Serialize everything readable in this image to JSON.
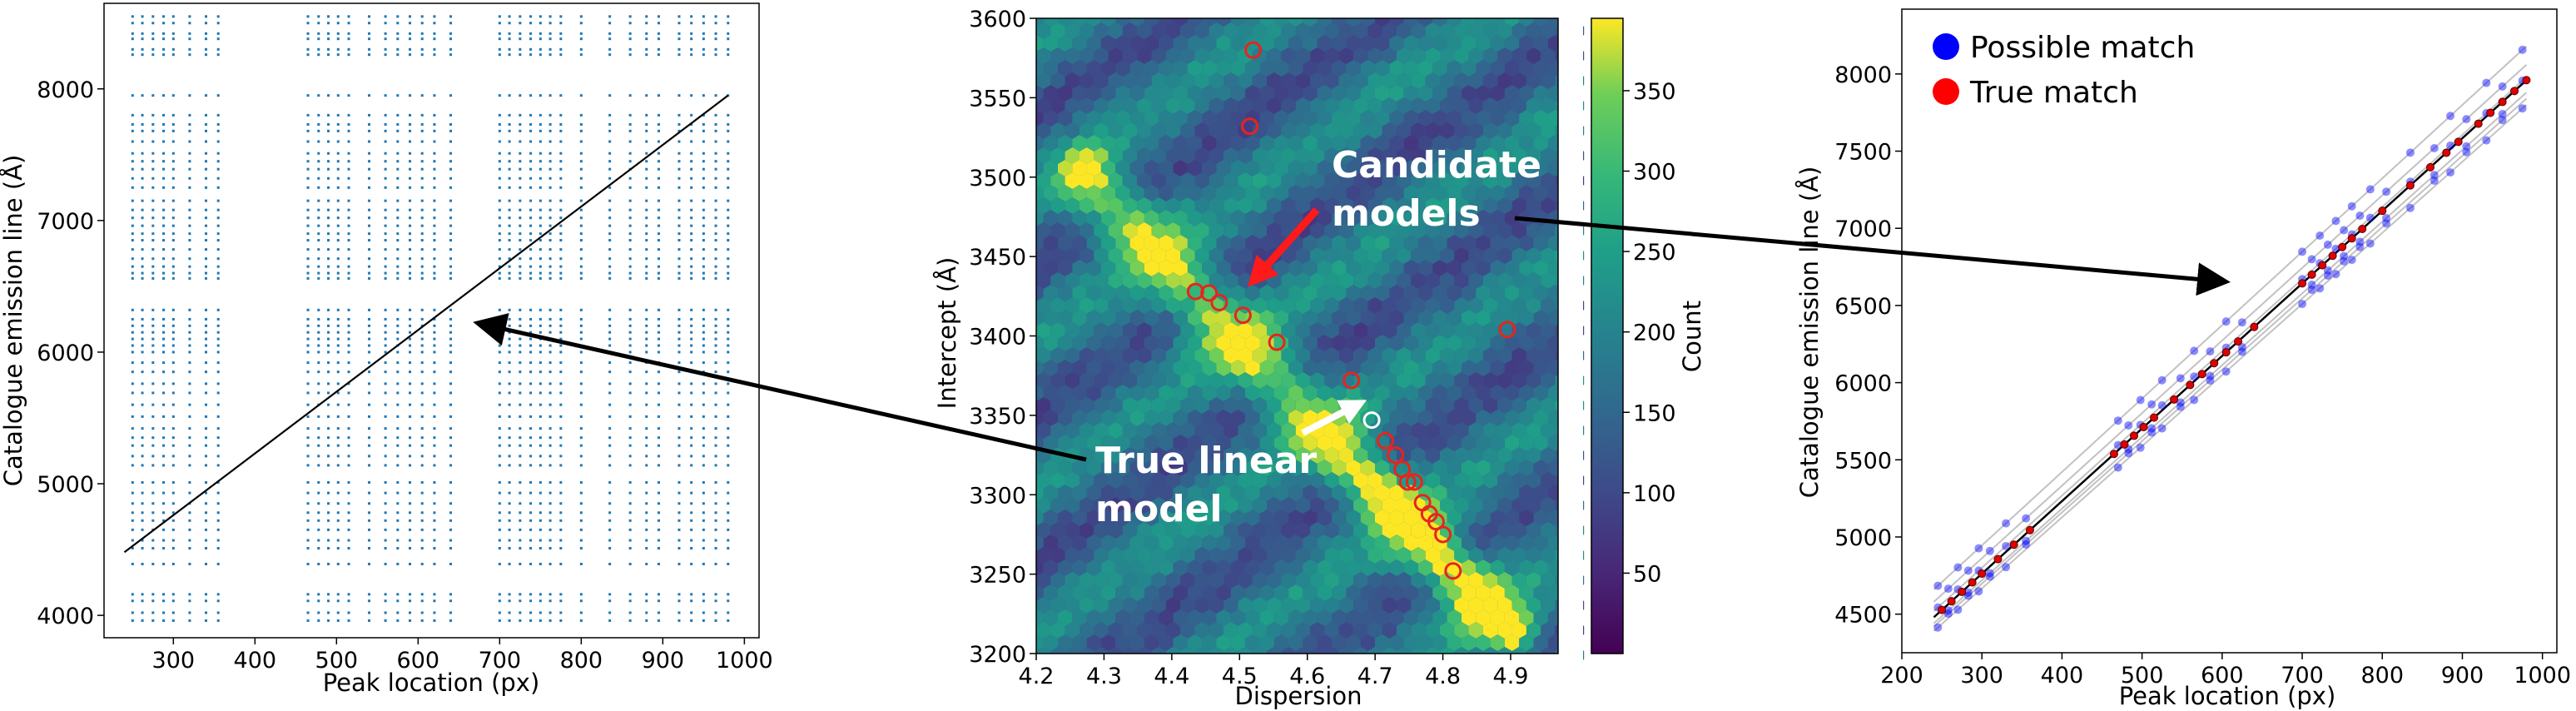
{
  "chart_data": [
    {
      "type": "scatter",
      "title": "",
      "xlabel": "Peak location (px)",
      "ylabel": "Catalogue emission line (Å)",
      "xlim": [
        215,
        1018
      ],
      "ylim": [
        3830,
        8650
      ],
      "xticks": [
        300,
        400,
        500,
        600,
        700,
        800,
        900,
        1000
      ],
      "yticks": [
        4000,
        5000,
        6000,
        7000,
        8000
      ],
      "peak_locations": [
        250,
        262,
        275,
        288,
        300,
        320,
        340,
        355,
        465,
        478,
        490,
        502,
        515,
        540,
        560,
        575,
        590,
        605,
        620,
        640,
        700,
        712,
        725,
        738,
        750,
        762,
        775,
        800,
        835,
        860,
        880,
        895,
        920,
        935,
        950,
        965,
        980
      ],
      "catalogue_lines": [
        3960,
        4020,
        4110,
        4160,
        4390,
        4510,
        4570,
        4650,
        4720,
        4780,
        4850,
        4930,
        5010,
        5140,
        5210,
        5290,
        5350,
        5420,
        5510,
        5600,
        5690,
        5760,
        5850,
        5920,
        6000,
        6050,
        6100,
        6150,
        6200,
        6250,
        6320,
        6560,
        6600,
        6650,
        6710,
        6780,
        6850,
        6900,
        6960,
        7020,
        7080,
        7150,
        7250,
        7320,
        7390,
        7450,
        7510,
        7600,
        7680,
        7730,
        7800,
        7950,
        8260,
        8300,
        8380,
        8420,
        8500,
        8550
      ],
      "line": {
        "x": [
          240,
          980
        ],
        "y": [
          4480,
          7950
        ]
      },
      "marker_color": "#1f77b4"
    },
    {
      "type": "heatmap",
      "title": "",
      "xlabel": "Dispersion",
      "ylabel": "Intercept (Å)",
      "xlim": [
        4.2,
        4.97
      ],
      "ylim": [
        3200,
        3600
      ],
      "xticks": [
        4.2,
        4.3,
        4.4,
        4.5,
        4.6,
        4.7,
        4.8,
        4.9
      ],
      "yticks": [
        3200,
        3250,
        3300,
        3350,
        3400,
        3450,
        3500,
        3550,
        3600
      ],
      "colorbar_label": "Count",
      "colorbar_ticks": [
        50,
        100,
        150,
        200,
        250,
        300,
        350
      ],
      "colorbar_range": [
        0,
        395
      ],
      "candidates": [
        {
          "x": 4.52,
          "y": 3580
        },
        {
          "x": 4.515,
          "y": 3532
        },
        {
          "x": 4.435,
          "y": 3428
        },
        {
          "x": 4.455,
          "y": 3427
        },
        {
          "x": 4.47,
          "y": 3421
        },
        {
          "x": 4.505,
          "y": 3413
        },
        {
          "x": 4.555,
          "y": 3396
        },
        {
          "x": 4.895,
          "y": 3404
        },
        {
          "x": 4.665,
          "y": 3372
        },
        {
          "x": 4.715,
          "y": 3334
        },
        {
          "x": 4.73,
          "y": 3325
        },
        {
          "x": 4.74,
          "y": 3316
        },
        {
          "x": 4.748,
          "y": 3308
        },
        {
          "x": 4.758,
          "y": 3308
        },
        {
          "x": 4.77,
          "y": 3295
        },
        {
          "x": 4.78,
          "y": 3288
        },
        {
          "x": 4.79,
          "y": 3283
        },
        {
          "x": 4.8,
          "y": 3275
        },
        {
          "x": 4.815,
          "y": 3252
        }
      ],
      "true_model": {
        "x": 4.695,
        "y": 3347
      },
      "annotations": [
        {
          "text_lines": [
            "Candidate",
            "models"
          ]
        },
        {
          "text_lines": [
            "True linear",
            "model"
          ]
        }
      ]
    },
    {
      "type": "line",
      "title": "",
      "xlabel": "Peak location (px)",
      "ylabel": "Catalogue emission line (Å)",
      "xlim": [
        200,
        1018
      ],
      "ylim": [
        4250,
        8420
      ],
      "xticks": [
        200,
        300,
        400,
        500,
        600,
        700,
        800,
        900,
        1000
      ],
      "yticks": [
        4500,
        5000,
        5500,
        6000,
        6500,
        7000,
        7500,
        8000
      ],
      "legend": {
        "placement": "top-left"
      },
      "series": [
        {
          "name": "Possible match",
          "color": "#0000ff"
        },
        {
          "name": "True match",
          "color": "#ff0000"
        }
      ],
      "true_line": {
        "x": [
          240,
          980
        ],
        "y": [
          4480,
          7960
        ]
      },
      "candidate_lines": [
        {
          "x": [
            240,
            980
          ],
          "y": [
            4660,
            8180
          ]
        },
        {
          "x": [
            240,
            980
          ],
          "y": [
            4580,
            8060
          ]
        },
        {
          "x": [
            240,
            980
          ],
          "y": [
            4520,
            7980
          ]
        },
        {
          "x": [
            240,
            980
          ],
          "y": [
            4440,
            7880
          ]
        },
        {
          "x": [
            240,
            980
          ],
          "y": [
            4390,
            7800
          ]
        },
        {
          "x": [
            240,
            980
          ],
          "y": [
            4420,
            7840
          ]
        }
      ],
      "possible_x": [
        245,
        258,
        270,
        283,
        296,
        310,
        330,
        355,
        470,
        483,
        498,
        512,
        525,
        548,
        565,
        585,
        605,
        625,
        700,
        712,
        722,
        732,
        742,
        752,
        762,
        772,
        785,
        805,
        835,
        865,
        885,
        905,
        930,
        950,
        975
      ],
      "true_x": [
        250,
        262,
        275,
        288,
        300,
        320,
        340,
        360,
        465,
        478,
        490,
        502,
        515,
        540,
        560,
        575,
        590,
        605,
        620,
        640,
        700,
        712,
        725,
        738,
        750,
        762,
        775,
        800,
        835,
        860,
        880,
        895,
        920,
        935,
        950,
        965,
        980
      ]
    }
  ]
}
